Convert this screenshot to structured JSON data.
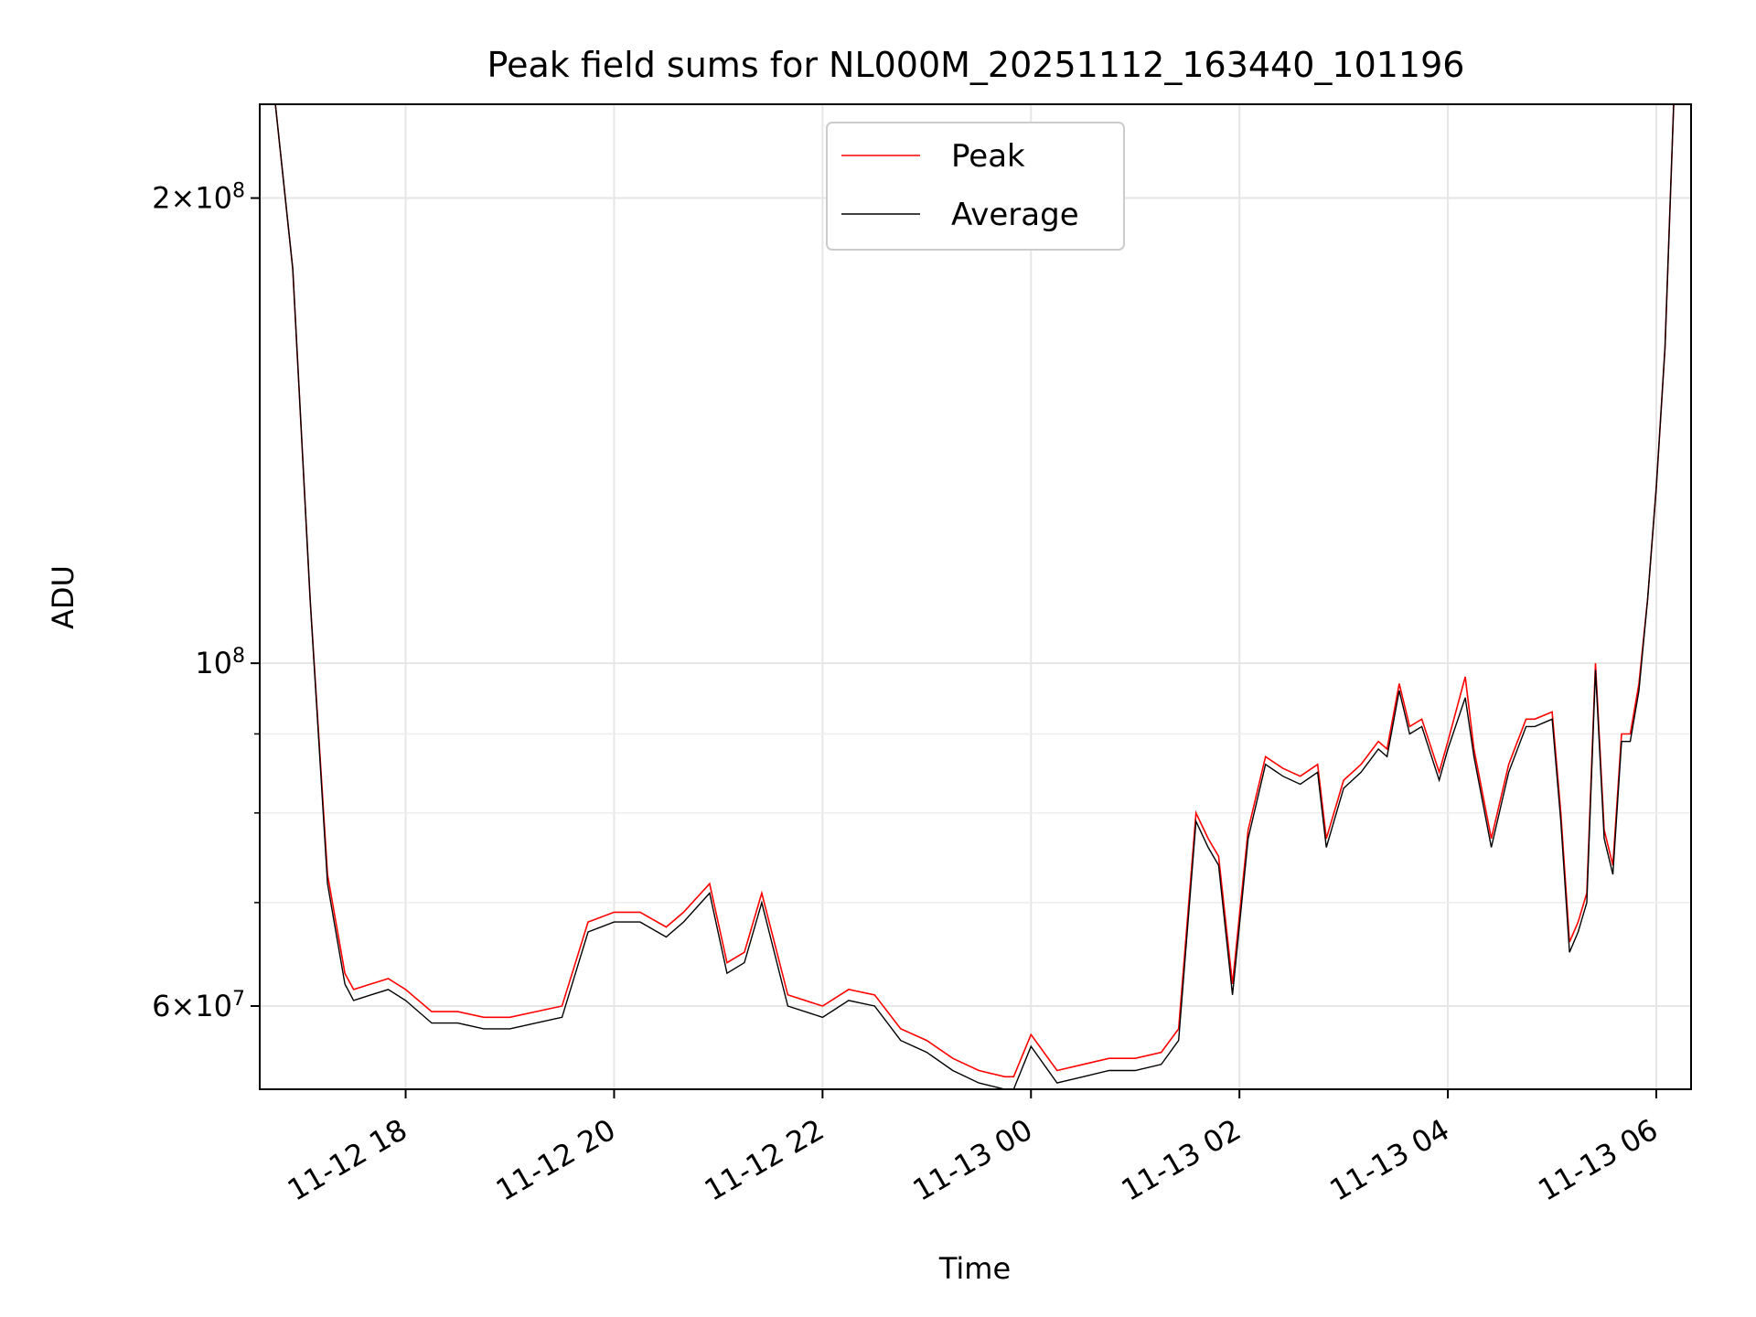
{
  "chart_data": {
    "type": "line",
    "title": "Peak field sums for NL000M_20251112_163440_101196",
    "xlabel": "Time",
    "ylabel": "ADU",
    "yscale": "log",
    "grid": true,
    "legend_position": "top-center",
    "xlim": [
      "2025-11-12 16:36",
      "2025-11-13 06:20"
    ],
    "ylim": [
      53000000,
      230000000
    ],
    "x_ticks": [
      "11-12 18",
      "11-12 20",
      "11-12 22",
      "11-13 00",
      "11-13 02",
      "11-13 04",
      "11-13 06"
    ],
    "y_ticks": [
      {
        "value": 60000000,
        "base": "6",
        "sup": "7"
      },
      {
        "value": 100000000,
        "base": "10",
        "sup": "8"
      },
      {
        "value": 200000000,
        "base": "2",
        "sup": "8"
      }
    ],
    "series": [
      {
        "name": "Peak",
        "color": "#ff0000",
        "x": [
          "2025-11-12 16:45",
          "2025-11-12 16:55",
          "2025-11-12 17:05",
          "2025-11-12 17:15",
          "2025-11-12 17:25",
          "2025-11-12 17:30",
          "2025-11-12 17:40",
          "2025-11-12 17:50",
          "2025-11-12 18:00",
          "2025-11-12 18:15",
          "2025-11-12 18:30",
          "2025-11-12 18:45",
          "2025-11-12 19:00",
          "2025-11-12 19:15",
          "2025-11-12 19:30",
          "2025-11-12 19:45",
          "2025-11-12 20:00",
          "2025-11-12 20:15",
          "2025-11-12 20:30",
          "2025-11-12 20:40",
          "2025-11-12 20:55",
          "2025-11-12 21:05",
          "2025-11-12 21:15",
          "2025-11-12 21:25",
          "2025-11-12 21:40",
          "2025-11-12 22:00",
          "2025-11-12 22:15",
          "2025-11-12 22:30",
          "2025-11-12 22:45",
          "2025-11-12 23:00",
          "2025-11-12 23:15",
          "2025-11-12 23:30",
          "2025-11-12 23:45",
          "2025-11-12 23:50",
          "2025-11-13 00:00",
          "2025-11-13 00:15",
          "2025-11-13 00:30",
          "2025-11-13 00:45",
          "2025-11-13 01:00",
          "2025-11-13 01:15",
          "2025-11-13 01:25",
          "2025-11-13 01:35",
          "2025-11-13 01:42",
          "2025-11-13 01:48",
          "2025-11-13 01:56",
          "2025-11-13 02:05",
          "2025-11-13 02:15",
          "2025-11-13 02:25",
          "2025-11-13 02:35",
          "2025-11-13 02:45",
          "2025-11-13 02:50",
          "2025-11-13 03:00",
          "2025-11-13 03:10",
          "2025-11-13 03:20",
          "2025-11-13 03:25",
          "2025-11-13 03:32",
          "2025-11-13 03:38",
          "2025-11-13 03:45",
          "2025-11-13 03:55",
          "2025-11-13 04:00",
          "2025-11-13 04:10",
          "2025-11-13 04:15",
          "2025-11-13 04:25",
          "2025-11-13 04:35",
          "2025-11-13 04:45",
          "2025-11-13 04:50",
          "2025-11-13 05:00",
          "2025-11-13 05:05",
          "2025-11-13 05:10",
          "2025-11-13 05:15",
          "2025-11-13 05:20",
          "2025-11-13 05:25",
          "2025-11-13 05:30",
          "2025-11-13 05:35",
          "2025-11-13 05:40",
          "2025-11-13 05:45",
          "2025-11-13 05:50",
          "2025-11-13 05:55",
          "2025-11-13 06:00",
          "2025-11-13 06:05",
          "2025-11-13 06:10"
        ],
        "y": [
          230000000,
          180000000,
          110000000,
          73000000,
          63000000,
          61500000,
          62000000,
          62500000,
          61500000,
          59500000,
          59500000,
          59000000,
          59000000,
          59500000,
          60000000,
          68000000,
          69000000,
          69000000,
          67500000,
          69000000,
          72000000,
          64000000,
          65000000,
          71000000,
          61000000,
          60000000,
          61500000,
          61000000,
          58000000,
          57000000,
          55500000,
          54500000,
          54000000,
          54000000,
          57500000,
          54500000,
          55000000,
          55500000,
          55500000,
          56000000,
          58000000,
          80000000,
          77000000,
          75000000,
          62000000,
          78000000,
          87000000,
          85500000,
          84500000,
          86000000,
          77000000,
          84000000,
          86000000,
          89000000,
          88000000,
          97000000,
          91000000,
          92000000,
          85000000,
          89000000,
          98000000,
          88000000,
          77000000,
          86000000,
          92000000,
          92000000,
          93000000,
          80000000,
          66000000,
          68000000,
          71000000,
          100000000,
          78000000,
          74000000,
          90000000,
          90000000,
          97000000,
          110000000,
          130000000,
          160000000,
          230000000
        ]
      },
      {
        "name": "Average",
        "color": "#000000",
        "x": [
          "2025-11-12 16:45",
          "2025-11-12 16:55",
          "2025-11-12 17:05",
          "2025-11-12 17:15",
          "2025-11-12 17:25",
          "2025-11-12 17:30",
          "2025-11-12 17:40",
          "2025-11-12 17:50",
          "2025-11-12 18:00",
          "2025-11-12 18:15",
          "2025-11-12 18:30",
          "2025-11-12 18:45",
          "2025-11-12 19:00",
          "2025-11-12 19:15",
          "2025-11-12 19:30",
          "2025-11-12 19:45",
          "2025-11-12 20:00",
          "2025-11-12 20:15",
          "2025-11-12 20:30",
          "2025-11-12 20:40",
          "2025-11-12 20:55",
          "2025-11-12 21:05",
          "2025-11-12 21:15",
          "2025-11-12 21:25",
          "2025-11-12 21:40",
          "2025-11-12 22:00",
          "2025-11-12 22:15",
          "2025-11-12 22:30",
          "2025-11-12 22:45",
          "2025-11-12 23:00",
          "2025-11-12 23:15",
          "2025-11-12 23:30",
          "2025-11-12 23:45",
          "2025-11-12 23:50",
          "2025-11-13 00:00",
          "2025-11-13 00:15",
          "2025-11-13 00:30",
          "2025-11-13 00:45",
          "2025-11-13 01:00",
          "2025-11-13 01:15",
          "2025-11-13 01:25",
          "2025-11-13 01:35",
          "2025-11-13 01:42",
          "2025-11-13 01:48",
          "2025-11-13 01:56",
          "2025-11-13 02:05",
          "2025-11-13 02:15",
          "2025-11-13 02:25",
          "2025-11-13 02:35",
          "2025-11-13 02:45",
          "2025-11-13 02:50",
          "2025-11-13 03:00",
          "2025-11-13 03:10",
          "2025-11-13 03:20",
          "2025-11-13 03:25",
          "2025-11-13 03:32",
          "2025-11-13 03:38",
          "2025-11-13 03:45",
          "2025-11-13 03:55",
          "2025-11-13 04:00",
          "2025-11-13 04:10",
          "2025-11-13 04:15",
          "2025-11-13 04:25",
          "2025-11-13 04:35",
          "2025-11-13 04:45",
          "2025-11-13 04:50",
          "2025-11-13 05:00",
          "2025-11-13 05:05",
          "2025-11-13 05:10",
          "2025-11-13 05:15",
          "2025-11-13 05:20",
          "2025-11-13 05:25",
          "2025-11-13 05:30",
          "2025-11-13 05:35",
          "2025-11-13 05:40",
          "2025-11-13 05:45",
          "2025-11-13 05:50",
          "2025-11-13 05:55",
          "2025-11-13 06:00",
          "2025-11-13 06:05",
          "2025-11-13 06:10"
        ],
        "y": [
          230000000,
          180000000,
          110000000,
          72000000,
          62000000,
          60500000,
          61000000,
          61500000,
          60500000,
          58500000,
          58500000,
          58000000,
          58000000,
          58500000,
          59000000,
          67000000,
          68000000,
          68000000,
          66500000,
          68000000,
          71000000,
          63000000,
          64000000,
          70000000,
          60000000,
          59000000,
          60500000,
          60000000,
          57000000,
          56000000,
          54500000,
          53500000,
          53000000,
          53000000,
          56500000,
          53500000,
          54000000,
          54500000,
          54500000,
          55000000,
          57000000,
          79000000,
          76000000,
          74000000,
          61000000,
          77000000,
          86000000,
          84500000,
          83500000,
          85000000,
          76000000,
          83000000,
          85000000,
          88000000,
          87000000,
          96000000,
          90000000,
          91000000,
          84000000,
          88000000,
          95000000,
          87000000,
          76000000,
          85000000,
          91000000,
          91000000,
          92000000,
          79000000,
          65000000,
          67000000,
          70000000,
          99000000,
          77000000,
          73000000,
          89000000,
          89000000,
          96000000,
          110000000,
          130000000,
          160000000,
          230000000
        ]
      }
    ]
  }
}
